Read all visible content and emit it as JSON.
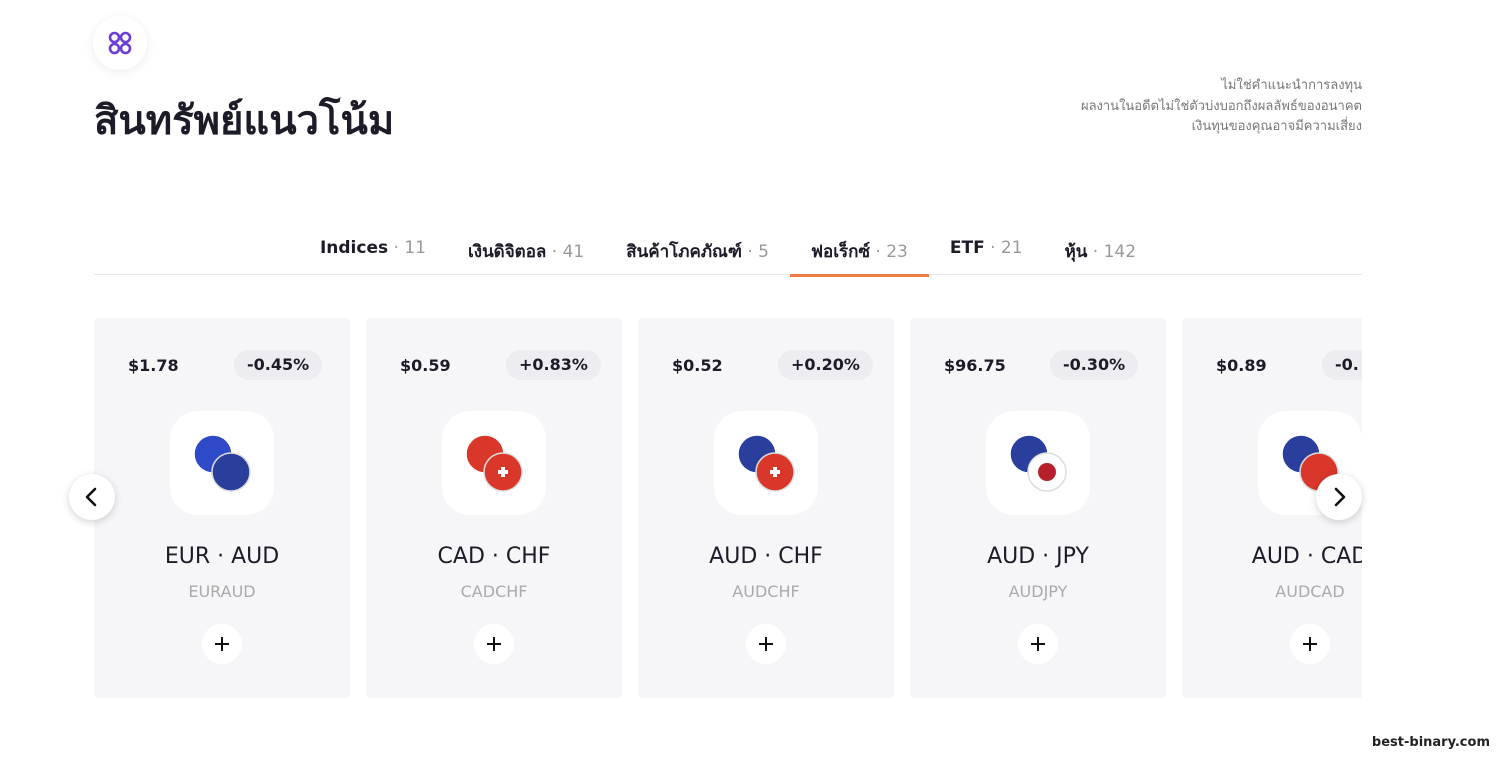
{
  "header": {
    "title": "สินทรัพย์แนวโน้ม",
    "disclaimer": [
      "ไม่ใช่คำแนะนำการลงทุน",
      "ผลงานในอดีตไม่ใช่ตัวบ่งบอกถึงผลลัพธ์ของอนาคต",
      "เงินทุนของคุณอาจมีความเสี่ยง"
    ]
  },
  "tab_separator": "·",
  "active_tab": 3,
  "tabs": [
    {
      "name": "Indices",
      "count": "11"
    },
    {
      "name": "เงินดิจิตอล",
      "count": "41"
    },
    {
      "name": "สินค้าโภคภัณฑ์",
      "count": "5"
    },
    {
      "name": "ฟอเร็กซ์",
      "count": "23"
    },
    {
      "name": "ETF",
      "count": "21"
    },
    {
      "name": "หุ้น",
      "count": "142"
    }
  ],
  "cards": [
    {
      "price": "$1.78",
      "change": "-0.45%",
      "pair": "EUR · AUD",
      "symbol": "EURAUD"
    },
    {
      "price": "$0.59",
      "change": "+0.83%",
      "pair": "CAD · CHF",
      "symbol": "CADCHF"
    },
    {
      "price": "$0.52",
      "change": "+0.20%",
      "pair": "AUD · CHF",
      "symbol": "AUDCHF"
    },
    {
      "price": "$96.75",
      "change": "-0.30%",
      "pair": "AUD · JPY",
      "symbol": "AUDJPY"
    },
    {
      "price": "$0.89",
      "change": "-0.",
      "pair": "AUD · CAD",
      "symbol": "AUDCAD"
    }
  ],
  "watermark": "best-binary.com"
}
